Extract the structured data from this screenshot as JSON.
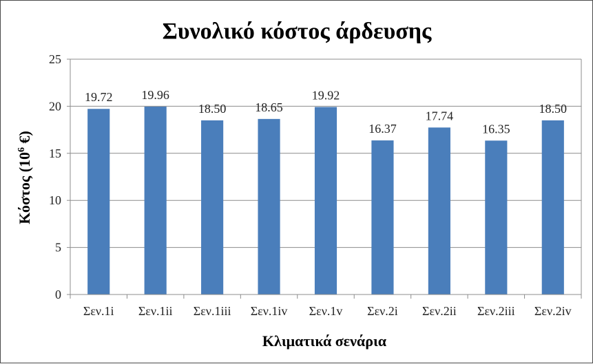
{
  "chart_data": {
    "type": "bar",
    "title": "Συνολικό κόστος άρδευσης",
    "xlabel": "Κλιματικά σενάρια",
    "ylabel": "Κόστος (10",
    "ylabel_sup": "6",
    "ylabel_suffix": " €)",
    "categories": [
      "Σεν.1i",
      "Σεν.1ii",
      "Σεν.1iii",
      "Σεν.1iv",
      "Σεν.1v",
      "Σεν.2i",
      "Σεν.2ii",
      "Σεν.2iii",
      "Σεν.2iv"
    ],
    "values": [
      19.72,
      19.96,
      18.5,
      18.65,
      19.92,
      16.37,
      17.74,
      16.35,
      18.5
    ],
    "value_labels": [
      "19.72",
      "19.96",
      "18.50",
      "18.65",
      "19.92",
      "16.37",
      "17.74",
      "16.35",
      "18.50"
    ],
    "ylim": [
      0,
      25
    ],
    "yticks": [
      "0",
      "5",
      "10",
      "15",
      "20",
      "25"
    ],
    "grid": true,
    "bar_color": "#4a7ebb"
  }
}
